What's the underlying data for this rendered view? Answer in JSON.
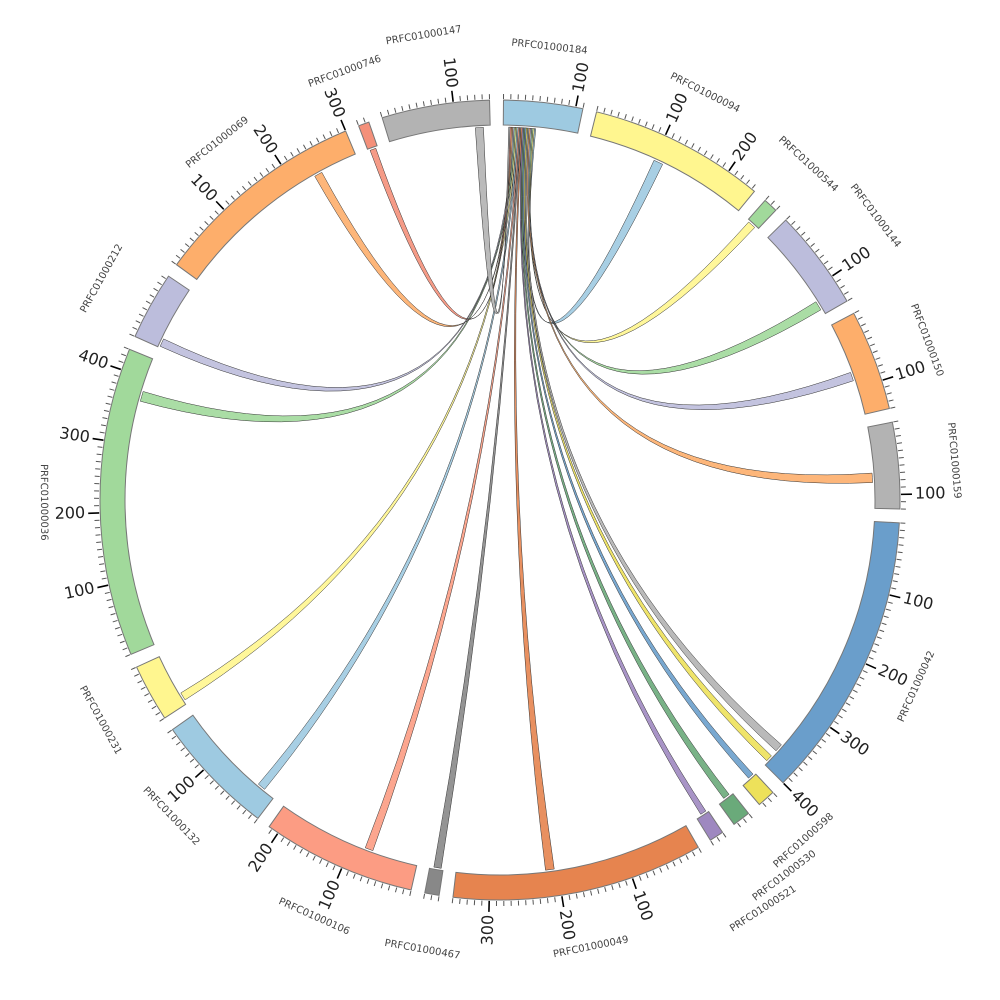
{
  "chart_data": {
    "type": "chord",
    "title": "",
    "tick_major": 100,
    "tick_minor": 10,
    "segments": [
      {
        "name": "PRFC01000184",
        "length": 110,
        "color": "#9ecae1"
      },
      {
        "name": "PRFC01000094",
        "length": 245,
        "color": "#fff68f"
      },
      {
        "name": "PRFC01000544",
        "length": 20,
        "color": "#a1d99b"
      },
      {
        "name": "PRFC01000144",
        "length": 140,
        "color": "#bcbddc"
      },
      {
        "name": "PRFC01000150",
        "length": 140,
        "color": "#fdae6b"
      },
      {
        "name": "PRFC01000159",
        "length": 120,
        "color": "#b3b3b3"
      },
      {
        "name": "PRFC01000042",
        "length": 400,
        "color": "#6a9ecb"
      },
      {
        "name": "PRFC01000598",
        "length": 25,
        "color": "#ede15a"
      },
      {
        "name": "PRFC01000530",
        "length": 25,
        "color": "#6aaa7a"
      },
      {
        "name": "PRFC01000521",
        "length": 20,
        "color": "#9e88c0"
      },
      {
        "name": "PRFC01000049",
        "length": 350,
        "color": "#e6844f"
      },
      {
        "name": "PRFC01000467",
        "length": 20,
        "color": "#888888"
      },
      {
        "name": "PRFC01000106",
        "length": 215,
        "color": "#fc9c83"
      },
      {
        "name": "PRFC01000132",
        "length": 170,
        "color": "#9ecae1"
      },
      {
        "name": "PRFC01000231",
        "length": 80,
        "color": "#fff68f"
      },
      {
        "name": "PRFC01000036",
        "length": 430,
        "color": "#a1d99b"
      },
      {
        "name": "PRFC01000212",
        "length": 95,
        "color": "#bcbddc"
      },
      {
        "name": "PRFC01000069",
        "length": 300,
        "color": "#fdae6b"
      },
      {
        "name": "PRFC01000746",
        "length": 15,
        "color": "#f4907a"
      },
      {
        "name": "PRFC01000147",
        "length": 150,
        "color": "#b3b3b3"
      }
    ],
    "links": [
      {
        "from": "PRFC01000184",
        "from_range": [
          46,
          48
        ],
        "to": "PRFC01000094",
        "to_range": [
          100,
          114
        ],
        "color": "#9ecae1"
      },
      {
        "from": "PRFC01000184",
        "from_range": [
          44,
          46
        ],
        "to": "PRFC01000544",
        "to_range": [
          3,
          15
        ],
        "color": "#fff68f"
      },
      {
        "from": "PRFC01000184",
        "from_range": [
          42,
          44
        ],
        "to": "PRFC01000144",
        "to_range": [
          118,
          132
        ],
        "color": "#a1d99b"
      },
      {
        "from": "PRFC01000184",
        "from_range": [
          40,
          42
        ],
        "to": "PRFC01000150",
        "to_range": [
          75,
          88
        ],
        "color": "#bcbddc"
      },
      {
        "from": "PRFC01000184",
        "from_range": [
          38,
          40
        ],
        "to": "PRFC01000159",
        "to_range": [
          68,
          82
        ],
        "color": "#fdae6b"
      },
      {
        "from": "PRFC01000184",
        "from_range": [
          36,
          38
        ],
        "to": "PRFC01000042",
        "to_range": [
          362,
          374
        ],
        "color": "#b3b3b3"
      },
      {
        "from": "PRFC01000184",
        "from_range": [
          34,
          36
        ],
        "to": "PRFC01000042",
        "to_range": [
          384,
          394
        ],
        "color": "#ede15a"
      },
      {
        "from": "PRFC01000184",
        "from_range": [
          32,
          34
        ],
        "to": "PRFC01000598",
        "to_range": [
          3,
          12
        ],
        "color": "#6a9ecb"
      },
      {
        "from": "PRFC01000184",
        "from_range": [
          30,
          32
        ],
        "to": "PRFC01000530",
        "to_range": [
          5,
          15
        ],
        "color": "#6aaa7a"
      },
      {
        "from": "PRFC01000184",
        "from_range": [
          28,
          30
        ],
        "to": "PRFC01000521",
        "to_range": [
          3,
          12
        ],
        "color": "#9e88c0"
      },
      {
        "from": "PRFC01000184",
        "from_range": [
          26,
          28
        ],
        "to": "PRFC01000049",
        "to_range": [
          205,
          218
        ],
        "color": "#e6844f"
      },
      {
        "from": "PRFC01000184",
        "from_range": [
          24,
          26
        ],
        "to": "PRFC01000467",
        "to_range": [
          3,
          14
        ],
        "color": "#888888"
      },
      {
        "from": "PRFC01000184",
        "from_range": [
          22,
          24
        ],
        "to": "PRFC01000106",
        "to_range": [
          68,
          80
        ],
        "color": "#fc9c83"
      },
      {
        "from": "PRFC01000184",
        "from_range": [
          20,
          22
        ],
        "to": "PRFC01000132",
        "to_range": [
          18,
          30
        ],
        "color": "#9ecae1"
      },
      {
        "from": "PRFC01000184",
        "from_range": [
          18,
          20
        ],
        "to": "PRFC01000231",
        "to_range": [
          6,
          18
        ],
        "color": "#fff68f"
      },
      {
        "from": "PRFC01000184",
        "from_range": [
          16,
          18
        ],
        "to": "PRFC01000036",
        "to_range": [
          365,
          380
        ],
        "color": "#a1d99b"
      },
      {
        "from": "PRFC01000184",
        "from_range": [
          14,
          16
        ],
        "to": "PRFC01000212",
        "to_range": [
          2,
          14
        ],
        "color": "#bcbddc"
      },
      {
        "from": "PRFC01000184",
        "from_range": [
          12,
          14
        ],
        "to": "PRFC01000069",
        "to_range": [
          232,
          244
        ],
        "color": "#fdae6b"
      },
      {
        "from": "PRFC01000184",
        "from_range": [
          10,
          12
        ],
        "to": "PRFC01000746",
        "to_range": [
          3,
          12
        ],
        "color": "#f4907a"
      },
      {
        "from": "PRFC01000184",
        "from_range": [
          8,
          10
        ],
        "to": "PRFC01000147",
        "to_range": [
          128,
          140
        ],
        "color": "#b3b3b3"
      }
    ]
  }
}
